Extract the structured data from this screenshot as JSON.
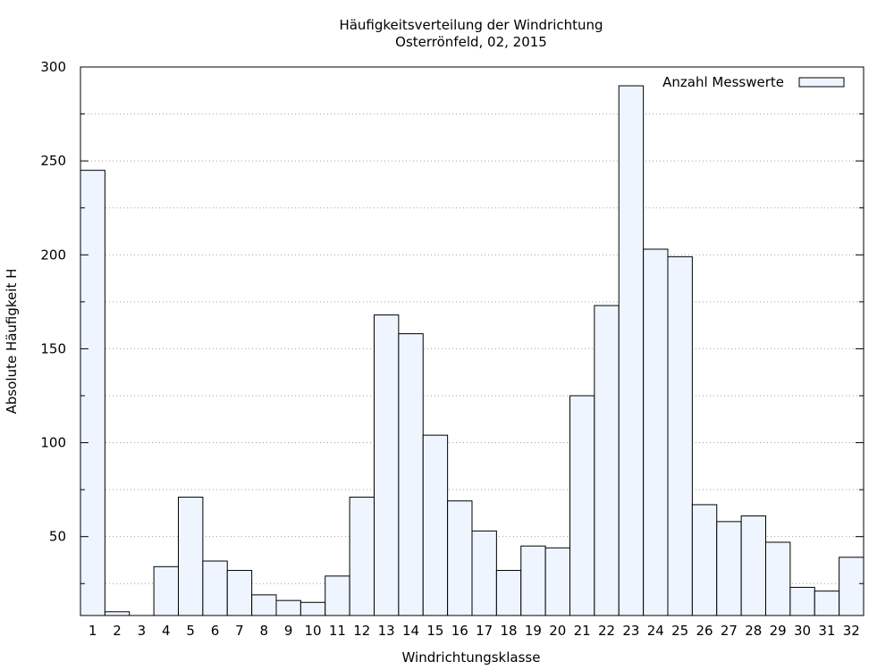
{
  "chart_data": {
    "type": "bar",
    "title": "Häufigkeitsverteilung der Windrichtung",
    "subtitle": "Osterrönfeld, 02, 2015",
    "xlabel": "Windrichtungsklasse",
    "ylabel": "Absolute Häufigkeit H",
    "ylim": [
      8,
      300
    ],
    "yticks": [
      50,
      100,
      150,
      200,
      250,
      300
    ],
    "grid": "horizontal dotted",
    "legend_position": "top-right",
    "categories": [
      "1",
      "2",
      "3",
      "4",
      "5",
      "6",
      "7",
      "8",
      "9",
      "10",
      "11",
      "12",
      "13",
      "14",
      "15",
      "16",
      "17",
      "18",
      "19",
      "20",
      "21",
      "22",
      "23",
      "24",
      "25",
      "26",
      "27",
      "28",
      "29",
      "30",
      "31",
      "32"
    ],
    "series": [
      {
        "name": "Anzahl Messwerte",
        "values": [
          245,
          10,
          8,
          34,
          71,
          37,
          32,
          19,
          16,
          15,
          29,
          71,
          168,
          158,
          104,
          69,
          53,
          32,
          45,
          44,
          125,
          173,
          290,
          203,
          199,
          67,
          58,
          61,
          47,
          23,
          21,
          39
        ]
      }
    ],
    "colors": {
      "bar_fill": "#eef5ff",
      "bar_stroke": "#000000",
      "grid": "#a0a0a0"
    }
  }
}
